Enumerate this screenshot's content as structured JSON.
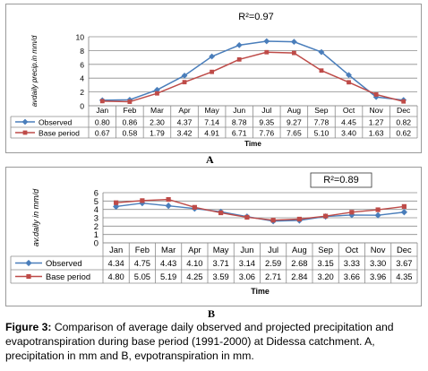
{
  "panels": [
    {
      "r2": "R²=0.97",
      "ylabel": "avdaily precip.in mm/d",
      "xlabel": "Time",
      "panel_label": "A"
    },
    {
      "r2": "R²=0.89",
      "ylabel": "av.daily in mm/d",
      "xlabel": "Time",
      "panel_label": "B"
    }
  ],
  "caption": {
    "figure": "Figure 3:",
    "text": " Comparison of average daily observed and projected precipitation and evapotranspiration during base period (1991-2000) at Didessa catchment. A, precipitation in mm and B, evpotranspiration in mm."
  },
  "colors": {
    "observed": "#4a7ebb",
    "base": "#be4b48"
  },
  "chart_data": [
    {
      "type": "line",
      "title": "",
      "annotation": "R²=0.97",
      "xlabel": "Time",
      "ylabel": "avdaily precip.in mm/d",
      "ylim": [
        0,
        10
      ],
      "yticks": [
        0,
        2,
        4,
        6,
        8,
        10
      ],
      "grid": true,
      "legend": "table-left",
      "categories": [
        "Jan",
        "Feb",
        "Mar",
        "Apr",
        "May",
        "Jun",
        "Jul",
        "Aug",
        "Sep",
        "Oct",
        "Nov",
        "Dec"
      ],
      "series": [
        {
          "name": "Observed",
          "marker": "diamond",
          "values": [
            0.8,
            0.86,
            2.3,
            4.37,
            7.14,
            8.78,
            9.35,
            9.27,
            7.78,
            4.45,
            1.27,
            0.82
          ],
          "labels": [
            "0.80",
            "0.86",
            "2.30",
            "4.37",
            "7.14",
            "8.78",
            "9.35",
            "9.27",
            "7.78",
            "4.45",
            "1.27",
            "0.82"
          ]
        },
        {
          "name": "Base period",
          "marker": "square",
          "values": [
            0.67,
            0.58,
            1.79,
            3.42,
            4.91,
            6.71,
            7.76,
            7.65,
            5.1,
            3.4,
            1.63,
            0.62
          ],
          "labels": [
            "0.67",
            "0.58",
            "1.79",
            "3.42",
            "4.91",
            "6.71",
            "7.76",
            "7.65",
            "5.10",
            "3.40",
            "1.63",
            "0.62"
          ]
        }
      ]
    },
    {
      "type": "line",
      "title": "",
      "annotation": "R²=0.89",
      "xlabel": "Time",
      "ylabel": "av.daily in mm/d",
      "ylim": [
        0,
        6
      ],
      "yticks": [
        0,
        1,
        2,
        3,
        4,
        5,
        6
      ],
      "grid": true,
      "legend": "table-left",
      "categories": [
        "Jan",
        "Feb",
        "Mar",
        "Apr",
        "May",
        "Jun",
        "Jul",
        "Aug",
        "Sep",
        "Oct",
        "Nov",
        "Dec"
      ],
      "series": [
        {
          "name": "Observed",
          "marker": "diamond",
          "values": [
            4.34,
            4.75,
            4.43,
            4.1,
            3.71,
            3.14,
            2.59,
            2.68,
            3.15,
            3.33,
            3.3,
            3.67
          ],
          "labels": [
            "4.34",
            "4.75",
            "4.43",
            "4.10",
            "3.71",
            "3.14",
            "2.59",
            "2.68",
            "3.15",
            "3.33",
            "3.30",
            "3.67"
          ]
        },
        {
          "name": "Base period",
          "marker": "square",
          "values": [
            4.8,
            5.05,
            5.19,
            4.25,
            3.59,
            3.06,
            2.71,
            2.84,
            3.2,
            3.66,
            3.96,
            4.35
          ],
          "labels": [
            "4.80",
            "5.05",
            "5.19",
            "4.25",
            "3.59",
            "3.06",
            "2.71",
            "2.84",
            "3.20",
            "3.66",
            "3.96",
            "4.35"
          ]
        }
      ]
    }
  ]
}
